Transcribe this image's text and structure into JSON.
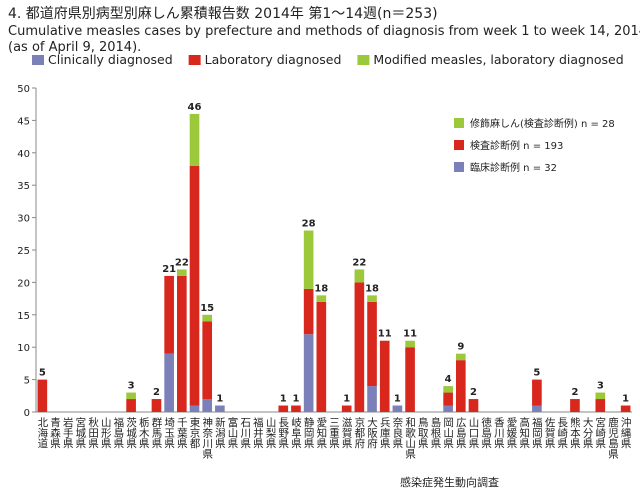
{
  "chart_data": {
    "type": "bar",
    "stacked": true,
    "title": "4. 都道府県別病型別麻しん累積報告数 2014年 第1～14週(n＝253)",
    "subtitle": "Cumulative measles cases by prefecture and methods of diagnosis from week 1 to week 14, 2014",
    "subtitle2": "(as of  April 9, 2014).",
    "source": "感染症発生動向調査",
    "inner_legend": [
      "修飾麻しん(検査診断例) n = 28",
      "検査診断例 n = 193",
      "臨床診断例 n = 32"
    ],
    "categories": [
      "北海道",
      "青森県",
      "岩手県",
      "宮城県",
      "秋田県",
      "山形県",
      "福島県",
      "茨城県",
      "栃木県",
      "群馬県",
      "埼玉県",
      "千葉県",
      "東京都",
      "神奈川県",
      "新潟県",
      "富山県",
      "石川県",
      "福井県",
      "山梨県",
      "長野県",
      "岐阜県",
      "静岡県",
      "愛知県",
      "三重県",
      "滋賀県",
      "京都府",
      "大阪府",
      "兵庫県",
      "奈良県",
      "和歌山県",
      "鳥取県",
      "島根県",
      "岡山県",
      "広島県",
      "山口県",
      "徳島県",
      "香川県",
      "愛媛県",
      "高知県",
      "福岡県",
      "佐賀県",
      "長崎県",
      "熊本県",
      "大分県",
      "宮崎県",
      "鹿児島県",
      "沖縄県"
    ],
    "series": [
      {
        "name": "Clinically diagnosed",
        "color": "#7b80b8",
        "values": [
          0,
          0,
          0,
          0,
          0,
          0,
          0,
          0,
          0,
          0,
          9,
          0,
          1,
          2,
          1,
          0,
          0,
          0,
          0,
          0,
          0,
          12,
          0,
          0,
          0,
          0,
          4,
          0,
          1,
          0,
          0,
          0,
          1,
          0,
          0,
          0,
          0,
          0,
          0,
          1,
          0,
          0,
          0,
          0,
          0,
          0,
          0
        ]
      },
      {
        "name": "Laboratory diagnosed",
        "color": "#d8281e",
        "values": [
          5,
          0,
          0,
          0,
          0,
          0,
          0,
          2,
          0,
          2,
          12,
          21,
          37,
          12,
          0,
          0,
          0,
          0,
          0,
          1,
          1,
          7,
          17,
          0,
          1,
          20,
          13,
          11,
          0,
          10,
          0,
          0,
          2,
          8,
          2,
          0,
          0,
          0,
          0,
          4,
          0,
          0,
          2,
          0,
          2,
          0,
          1
        ]
      },
      {
        "name": "Modified measles, laboratory diagnosed",
        "color": "#9cc83c",
        "values": [
          0,
          0,
          0,
          0,
          0,
          0,
          0,
          1,
          0,
          0,
          0,
          1,
          8,
          1,
          0,
          0,
          0,
          0,
          0,
          0,
          0,
          9,
          1,
          0,
          0,
          2,
          1,
          0,
          0,
          1,
          0,
          0,
          1,
          1,
          0,
          0,
          0,
          0,
          0,
          0,
          0,
          0,
          0,
          0,
          1,
          0,
          0
        ]
      }
    ],
    "totals": [
      5,
      null,
      null,
      null,
      null,
      null,
      null,
      3,
      null,
      2,
      21,
      22,
      46,
      15,
      1,
      null,
      null,
      null,
      null,
      1,
      1,
      28,
      18,
      null,
      1,
      22,
      18,
      11,
      1,
      11,
      null,
      null,
      4,
      9,
      2,
      null,
      null,
      null,
      null,
      5,
      null,
      null,
      2,
      null,
      3,
      null,
      1
    ],
    "ylim": [
      0,
      50
    ],
    "yticks": [
      0,
      5,
      10,
      15,
      20,
      25,
      30,
      35,
      40,
      45,
      50
    ]
  }
}
